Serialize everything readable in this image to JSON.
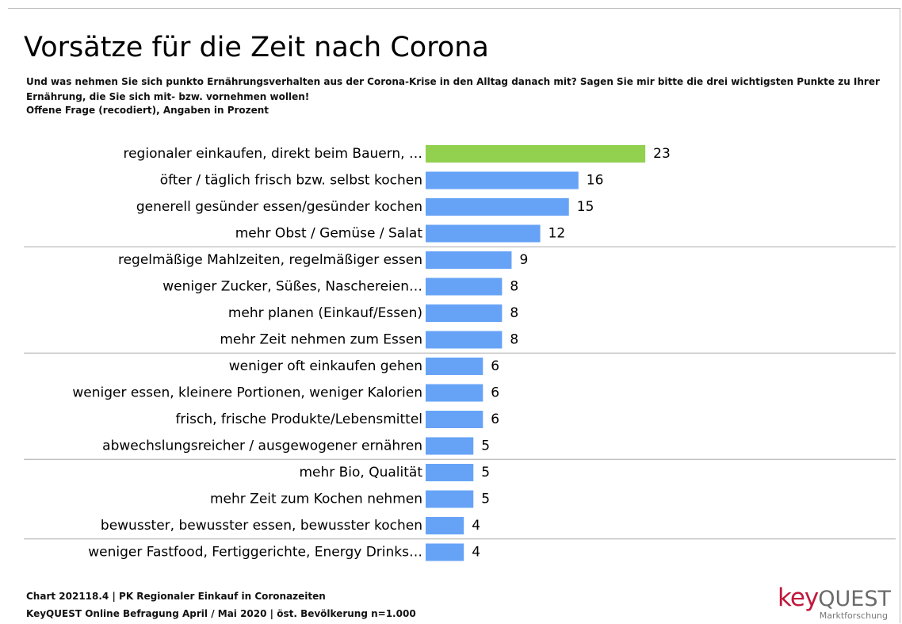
{
  "chart_data": {
    "type": "bar",
    "orientation": "horizontal",
    "title": "Vorsätze für die Zeit nach Corona",
    "subtitle": "Und was nehmen Sie sich punkto Ernährungsverhalten aus der Corona-Krise in den Alltag danach mit? Sagen Sie mir bitte die drei wichtigsten Punkte zu Ihrer Ernährung, die Sie sich mit- bzw. vornehmen wollen!",
    "note": "Offene Frage (recodiert), Angaben in Prozent",
    "categories": [
      "regionaler einkaufen, direkt beim Bauern, …",
      "öfter / täglich frisch bzw. selbst kochen",
      "generell gesünder essen/gesünder kochen",
      "mehr Obst / Gemüse / Salat",
      "regelmäßige Mahlzeiten, regelmäßiger essen",
      "weniger Zucker, Süßes, Naschereien…",
      "mehr planen (Einkauf/Essen)",
      "mehr Zeit nehmen zum Essen",
      "weniger oft einkaufen gehen",
      "weniger essen, kleinere Portionen, weniger Kalorien",
      "frisch, frische Produkte/Lebensmittel",
      "abwechslungsreicher / ausgewogener ernähren",
      "mehr Bio, Qualität",
      "mehr Zeit zum Kochen nehmen",
      "bewusster, bewusster essen, bewusster kochen",
      "weniger Fastfood, Fertiggerichte, Energy Drinks…"
    ],
    "values": [
      23,
      16,
      15,
      12,
      9,
      8,
      8,
      8,
      6,
      6,
      6,
      5,
      5,
      5,
      4,
      4
    ],
    "colors": [
      "#92d050",
      "#66a3f7",
      "#66a3f7",
      "#66a3f7",
      "#66a3f7",
      "#66a3f7",
      "#66a3f7",
      "#66a3f7",
      "#66a3f7",
      "#66a3f7",
      "#66a3f7",
      "#66a3f7",
      "#66a3f7",
      "#66a3f7",
      "#66a3f7",
      "#66a3f7"
    ],
    "footer": [
      "Chart 202118.4 | PK Regionaler Einkauf in Coronazeiten",
      "KeyQUEST Online Befragung April / Mai 2020 | öst. Bevölkerung n=1.000"
    ],
    "logo": {
      "key": "key",
      "quest": "QUEST",
      "tagline": "Marktforschung"
    }
  }
}
